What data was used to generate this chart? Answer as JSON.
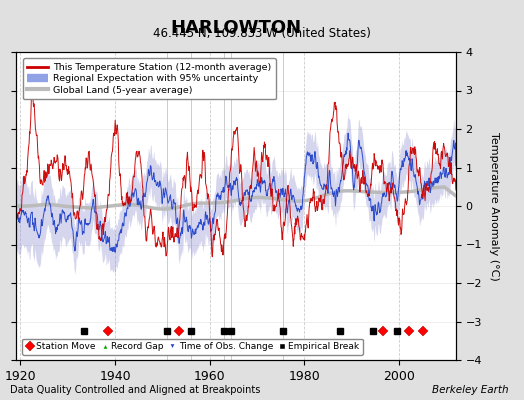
{
  "title": "HARLOWTON",
  "subtitle": "46.445 N, 109.833 W (United States)",
  "xlabel_bottom": "Data Quality Controlled and Aligned at Breakpoints",
  "xlabel_right": "Berkeley Earth",
  "ylabel": "Temperature Anomaly (°C)",
  "xlim": [
    1919,
    2012
  ],
  "ylim": [
    -4,
    4
  ],
  "yticks": [
    -4,
    -3,
    -2,
    -1,
    0,
    1,
    2,
    3,
    4
  ],
  "xticks": [
    1920,
    1940,
    1960,
    1980,
    2000
  ],
  "bg_color": "#e0e0e0",
  "plot_bg_color": "#ffffff",
  "station_moves": [
    1938.5,
    1953.5,
    1996.5,
    2002.0,
    2005.0
  ],
  "empirical_breaks": [
    1933.5,
    1951.0,
    1956.0,
    1963.0,
    1964.5,
    1975.5,
    1987.5,
    1994.5,
    1999.5
  ],
  "vlines": [
    1951.0,
    1956.0,
    1963.0,
    1964.5,
    1975.5
  ],
  "marker_y": -3.25,
  "uncertainty_alpha": 0.35,
  "uncertainty_color": "#8888cc",
  "red_line_color": "#cc0000",
  "blue_line_color": "#2244cc",
  "gray_fill_color": "#bbbbbb",
  "grid_color": "#cccccc"
}
